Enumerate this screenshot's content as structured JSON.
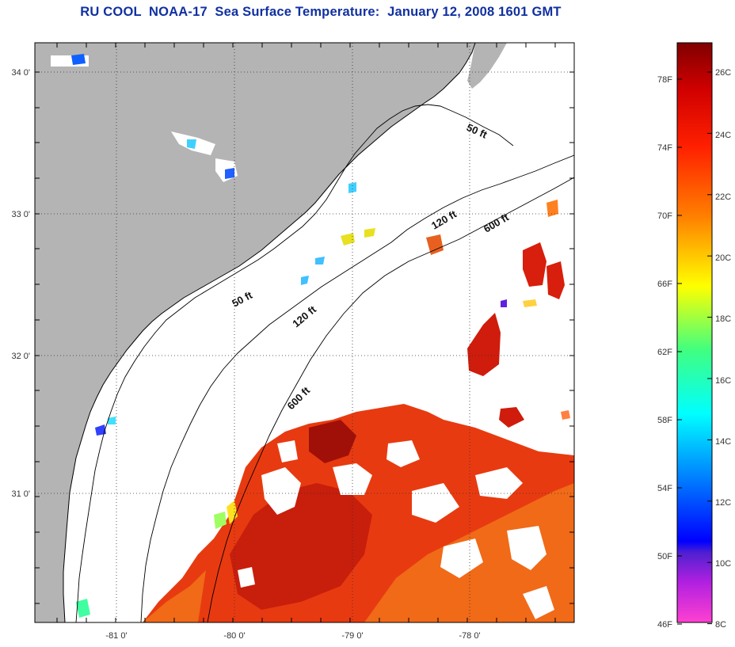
{
  "title": "RU COOL  NOAA-17  Sea Surface Temperature:  January 12, 2008 1601 GMT",
  "map": {
    "lat_labels": [
      "34 0'",
      "33 0'",
      "32 0'",
      "31 0'"
    ],
    "lon_labels": [
      "-81 0'",
      "-80 0'",
      "-79 0'",
      "-78 0'"
    ],
    "depth_labels": [
      "50 ft",
      "120 ft",
      "600 ft",
      "50 ft",
      "120 ft",
      "600 ft"
    ],
    "colors": {
      "land": "#b4b4b4",
      "sea_no_data": "#ffffff"
    }
  },
  "colorbar": {
    "fahrenheit_labels": [
      "78F",
      "74F",
      "70F",
      "66F",
      "62F",
      "58F",
      "54F",
      "50F",
      "46F"
    ],
    "celsius_labels": [
      "26C",
      "24C",
      "22C",
      "20C",
      "18C",
      "16C",
      "14C",
      "12C",
      "10C",
      "8C"
    ]
  }
}
